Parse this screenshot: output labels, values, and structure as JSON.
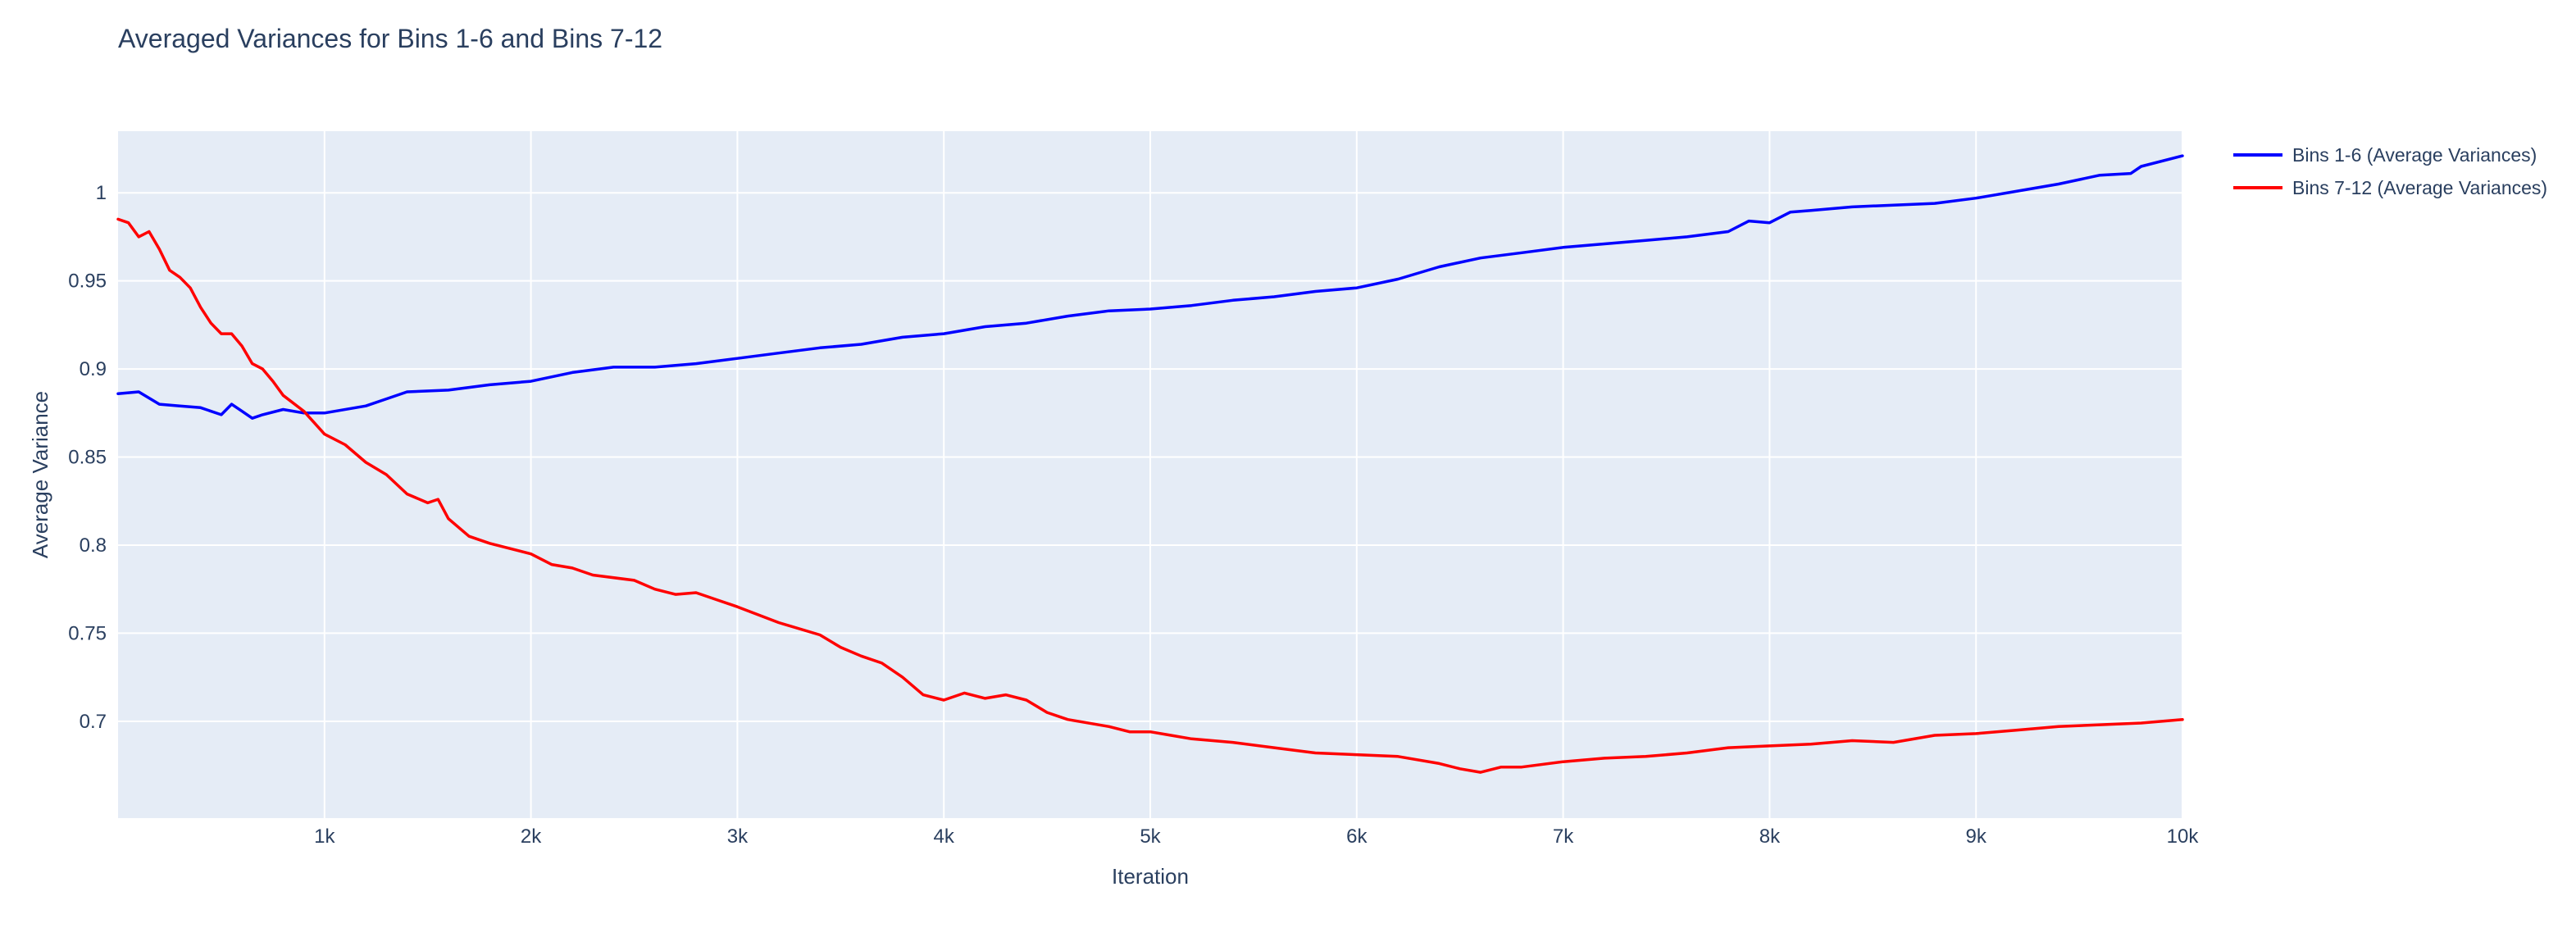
{
  "chart_data": {
    "type": "line",
    "title": "Averaged Variances for Bins 1-6 and Bins 7-12",
    "xlabel": "Iteration",
    "ylabel": "Average Variance",
    "xlim": [
      0,
      10000
    ],
    "ylim": [
      0.645,
      1.035
    ],
    "grid": true,
    "legend_position": "top-right, outside plot",
    "plot_background": "#E5ECF6",
    "x_ticks": [
      {
        "value": 1000,
        "label": "1k"
      },
      {
        "value": 2000,
        "label": "2k"
      },
      {
        "value": 3000,
        "label": "3k"
      },
      {
        "value": 4000,
        "label": "4k"
      },
      {
        "value": 5000,
        "label": "5k"
      },
      {
        "value": 6000,
        "label": "6k"
      },
      {
        "value": 7000,
        "label": "7k"
      },
      {
        "value": 8000,
        "label": "8k"
      },
      {
        "value": 9000,
        "label": "9k"
      },
      {
        "value": 10000,
        "label": "10k"
      }
    ],
    "y_ticks": [
      {
        "value": 0.7,
        "label": "0.7"
      },
      {
        "value": 0.75,
        "label": "0.75"
      },
      {
        "value": 0.8,
        "label": "0.8"
      },
      {
        "value": 0.85,
        "label": "0.85"
      },
      {
        "value": 0.9,
        "label": "0.9"
      },
      {
        "value": 0.95,
        "label": "0.95"
      },
      {
        "value": 1.0,
        "label": "1"
      }
    ],
    "series": [
      {
        "name": "Bins 1-6 (Average Variances)",
        "color": "#0000FF",
        "points": [
          [
            0,
            0.886
          ],
          [
            100,
            0.887
          ],
          [
            200,
            0.88
          ],
          [
            300,
            0.879
          ],
          [
            400,
            0.878
          ],
          [
            500,
            0.874
          ],
          [
            550,
            0.88
          ],
          [
            600,
            0.876
          ],
          [
            650,
            0.872
          ],
          [
            700,
            0.874
          ],
          [
            800,
            0.877
          ],
          [
            900,
            0.875
          ],
          [
            1000,
            0.875
          ],
          [
            1200,
            0.879
          ],
          [
            1300,
            0.883
          ],
          [
            1400,
            0.887
          ],
          [
            1600,
            0.888
          ],
          [
            1800,
            0.891
          ],
          [
            2000,
            0.893
          ],
          [
            2200,
            0.898
          ],
          [
            2400,
            0.901
          ],
          [
            2600,
            0.901
          ],
          [
            2800,
            0.903
          ],
          [
            3000,
            0.906
          ],
          [
            3200,
            0.909
          ],
          [
            3400,
            0.912
          ],
          [
            3600,
            0.914
          ],
          [
            3800,
            0.918
          ],
          [
            4000,
            0.92
          ],
          [
            4200,
            0.924
          ],
          [
            4400,
            0.926
          ],
          [
            4600,
            0.93
          ],
          [
            4800,
            0.933
          ],
          [
            5000,
            0.934
          ],
          [
            5200,
            0.936
          ],
          [
            5400,
            0.939
          ],
          [
            5600,
            0.941
          ],
          [
            5800,
            0.944
          ],
          [
            6000,
            0.946
          ],
          [
            6200,
            0.951
          ],
          [
            6400,
            0.958
          ],
          [
            6600,
            0.963
          ],
          [
            6800,
            0.966
          ],
          [
            7000,
            0.969
          ],
          [
            7200,
            0.971
          ],
          [
            7400,
            0.973
          ],
          [
            7600,
            0.975
          ],
          [
            7800,
            0.978
          ],
          [
            7900,
            0.984
          ],
          [
            8000,
            0.983
          ],
          [
            8100,
            0.989
          ],
          [
            8200,
            0.99
          ],
          [
            8400,
            0.992
          ],
          [
            8600,
            0.993
          ],
          [
            8800,
            0.994
          ],
          [
            9000,
            0.997
          ],
          [
            9200,
            1.001
          ],
          [
            9400,
            1.005
          ],
          [
            9600,
            1.01
          ],
          [
            9750,
            1.011
          ],
          [
            9800,
            1.015
          ],
          [
            10000,
            1.021
          ]
        ]
      },
      {
        "name": "Bins 7-12 (Average Variances)",
        "color": "#FF0000",
        "points": [
          [
            0,
            0.985
          ],
          [
            50,
            0.983
          ],
          [
            100,
            0.975
          ],
          [
            150,
            0.978
          ],
          [
            200,
            0.968
          ],
          [
            250,
            0.956
          ],
          [
            300,
            0.952
          ],
          [
            350,
            0.946
          ],
          [
            400,
            0.935
          ],
          [
            450,
            0.926
          ],
          [
            500,
            0.92
          ],
          [
            550,
            0.92
          ],
          [
            600,
            0.913
          ],
          [
            650,
            0.903
          ],
          [
            700,
            0.9
          ],
          [
            750,
            0.893
          ],
          [
            800,
            0.885
          ],
          [
            900,
            0.876
          ],
          [
            1000,
            0.863
          ],
          [
            1100,
            0.857
          ],
          [
            1200,
            0.847
          ],
          [
            1300,
            0.84
          ],
          [
            1400,
            0.829
          ],
          [
            1500,
            0.824
          ],
          [
            1550,
            0.826
          ],
          [
            1600,
            0.815
          ],
          [
            1700,
            0.805
          ],
          [
            1800,
            0.801
          ],
          [
            2000,
            0.795
          ],
          [
            2100,
            0.789
          ],
          [
            2200,
            0.787
          ],
          [
            2300,
            0.783
          ],
          [
            2500,
            0.78
          ],
          [
            2600,
            0.775
          ],
          [
            2700,
            0.772
          ],
          [
            2800,
            0.773
          ],
          [
            2900,
            0.769
          ],
          [
            3000,
            0.765
          ],
          [
            3200,
            0.756
          ],
          [
            3400,
            0.749
          ],
          [
            3500,
            0.742
          ],
          [
            3600,
            0.737
          ],
          [
            3700,
            0.733
          ],
          [
            3800,
            0.725
          ],
          [
            3900,
            0.715
          ],
          [
            4000,
            0.712
          ],
          [
            4100,
            0.716
          ],
          [
            4200,
            0.713
          ],
          [
            4300,
            0.715
          ],
          [
            4400,
            0.712
          ],
          [
            4500,
            0.705
          ],
          [
            4600,
            0.701
          ],
          [
            4800,
            0.697
          ],
          [
            4900,
            0.694
          ],
          [
            5000,
            0.694
          ],
          [
            5100,
            0.692
          ],
          [
            5200,
            0.69
          ],
          [
            5400,
            0.688
          ],
          [
            5600,
            0.685
          ],
          [
            5800,
            0.682
          ],
          [
            6000,
            0.681
          ],
          [
            6200,
            0.68
          ],
          [
            6400,
            0.676
          ],
          [
            6500,
            0.673
          ],
          [
            6600,
            0.671
          ],
          [
            6700,
            0.674
          ],
          [
            6800,
            0.674
          ],
          [
            7000,
            0.677
          ],
          [
            7200,
            0.679
          ],
          [
            7400,
            0.68
          ],
          [
            7600,
            0.682
          ],
          [
            7800,
            0.685
          ],
          [
            8000,
            0.686
          ],
          [
            8200,
            0.687
          ],
          [
            8400,
            0.689
          ],
          [
            8600,
            0.688
          ],
          [
            8800,
            0.692
          ],
          [
            9000,
            0.693
          ],
          [
            9200,
            0.695
          ],
          [
            9400,
            0.697
          ],
          [
            9600,
            0.698
          ],
          [
            9800,
            0.699
          ],
          [
            10000,
            0.701
          ]
        ]
      }
    ]
  }
}
